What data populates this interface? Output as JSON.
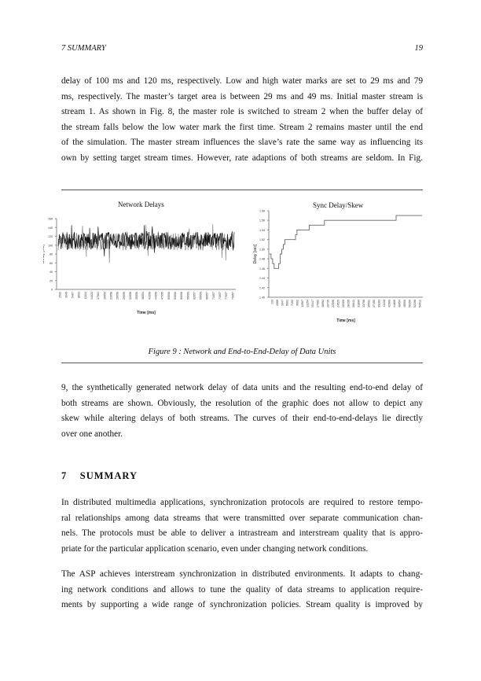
{
  "header": {
    "section": "7   SUMMARY",
    "page_number": "19"
  },
  "paragraph1": [
    "delay of 100 ms and 120 ms, respectively. Low and high water marks are set to 29 ms and 79",
    "ms, respectively. The master’s target area is between 29 ms and 49 ms. Initial master stream is",
    "stream 1. As shown in Fig. 8, the master role is switched to stream 2 when the buffer delay of",
    "the stream falls below the low water mark the first time. Stream 2 remains master until the end",
    "of the simulation. The master stream influences the slave’s rate the same way as influencing its",
    "own by setting target stream times. However, rate adaptions of both streams are seldom. In Fig."
  ],
  "figure": {
    "caption": "Figure 9 : Network and End-to-End-Delay of Data Units"
  },
  "chart_data": [
    {
      "type": "line",
      "title": "Network Delays",
      "xlabel": "Time [ms]",
      "ylabel": "Delay [ms]",
      "ylim": [
        0,
        150
      ],
      "yticks": [
        "0",
        "20",
        "40",
        "60",
        "80",
        "100",
        "120",
        "140",
        "160"
      ],
      "xticks": [
        "1502",
        "3046",
        "5467",
        "8091",
        "11113",
        "14022",
        "17064",
        "20055",
        "23058",
        "26056",
        "29059",
        "32058",
        "35056",
        "38054",
        "41056",
        "44056",
        "47055",
        "50056",
        "53056",
        "56058",
        "59056",
        "62057",
        "65059",
        "68057",
        "71057",
        "74057",
        "77057",
        "79057"
      ],
      "series": [
        {
          "color": "#111111",
          "values_range": [
            75,
            145
          ],
          "mean": 110
        },
        {
          "color": "#888888",
          "values_range": [
            60,
            148
          ],
          "mean": 108
        }
      ],
      "grid": false
    },
    {
      "type": "line",
      "title": "Sync Delay/Skew",
      "xlabel": "Time [ms]",
      "ylabel": "Delay [sec]",
      "ylim": [
        1.4,
        1.58
      ],
      "yticks": [
        "1.40",
        "1.42",
        "1.44",
        "1.46",
        "1.48",
        "1.50",
        "1.52",
        "1.54",
        "1.56",
        "1.58"
      ],
      "xticks": [
        "133",
        "2086",
        "3947",
        "5801",
        "7152",
        "9662",
        "11567",
        "13254",
        "15447",
        "17082",
        "18992",
        "20735",
        "22596",
        "24525",
        "26369",
        "28195",
        "30041",
        "31890",
        "33756",
        "35591",
        "37450",
        "39283",
        "41118",
        "42960",
        "44808",
        "46654",
        "48500",
        "50350",
        "52196",
        "54012"
      ],
      "series": [
        {
          "color": "#666666",
          "points": [
            [
              0,
              1.49
            ],
            [
              1,
              1.49
            ],
            [
              1,
              1.48
            ],
            [
              2,
              1.48
            ],
            [
              2,
              1.47
            ],
            [
              3,
              1.47
            ],
            [
              3,
              1.46
            ],
            [
              6,
              1.46
            ],
            [
              6,
              1.47
            ],
            [
              7,
              1.47
            ],
            [
              7,
              1.49
            ],
            [
              8,
              1.49
            ],
            [
              8,
              1.5
            ],
            [
              9,
              1.5
            ],
            [
              9,
              1.51
            ],
            [
              10,
              1.51
            ],
            [
              10,
              1.52
            ],
            [
              17,
              1.52
            ],
            [
              17,
              1.53
            ],
            [
              18,
              1.53
            ],
            [
              18,
              1.54
            ],
            [
              26,
              1.54
            ],
            [
              26,
              1.55
            ],
            [
              36,
              1.55
            ],
            [
              36,
              1.56
            ],
            [
              83,
              1.56
            ],
            [
              83,
              1.57
            ],
            [
              100,
              1.57
            ]
          ]
        }
      ],
      "grid": false
    }
  ],
  "paragraph2": [
    "9, the synthetically generated network delay of data units and the resulting end-to-end delay of",
    "both streams are shown. Obviously, the resolution of the graphic does not allow to depict any",
    "skew while altering delays of both streams. The curves of their end-to-end-delays lie directly",
    "over one another."
  ],
  "section": {
    "number": "7",
    "title": "SUMMARY"
  },
  "paragraph3": [
    "In distributed multimedia applications, synchronization protocols are required to restore tempo-",
    "ral relationships among data streams that were transmitted over separate communication chan-",
    "nels. The protocols must be able to deliver a intrastream and interstream quality that is appro-",
    "priate for the particular application scenario, even under changing network conditions."
  ],
  "paragraph4": [
    "The ASP achieves interstream synchronization in distributed environments. It adapts to chang-",
    "ing network conditions and allows to tune the quality of data streams to application require-",
    "ments by supporting a wide range of synchronization policies. Stream quality is improved by"
  ]
}
